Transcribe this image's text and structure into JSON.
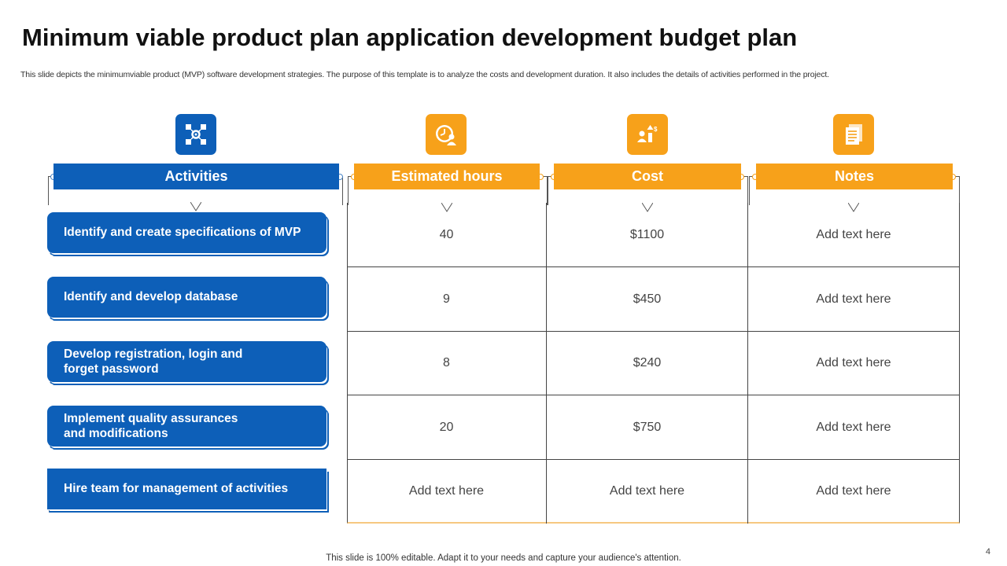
{
  "title": "Minimum viable product plan application development budget plan",
  "subtitle": "This slide depicts the minimumviable product (MVP)   software development strategies. The purpose of this template is to  analyze  the costs and development duration. It also includes the details of activities performed in the project.",
  "columns": [
    {
      "label": "Activities",
      "icon": "network-gear-icon",
      "color": "#0d5fb8"
    },
    {
      "label": "Estimated hours",
      "icon": "clock-person-icon",
      "color": "#f7a11a"
    },
    {
      "label": "Cost",
      "icon": "money-growth-icon",
      "color": "#f7a11a"
    },
    {
      "label": "Notes",
      "icon": "notes-icon",
      "color": "#f7a11a"
    }
  ],
  "rows": [
    {
      "activity": "Identify and create specifications of MVP",
      "hours": "40",
      "cost": "$1100",
      "notes": "Add text here"
    },
    {
      "activity": "Identify and develop database",
      "hours": "9",
      "cost": "$450",
      "notes": "Add text here"
    },
    {
      "activity": "Develop registration, login and\nforget password",
      "hours": "8",
      "cost": "$240",
      "notes": "Add text here"
    },
    {
      "activity": "Implement quality assurances\nand modifications",
      "hours": "20",
      "cost": "$750",
      "notes": "Add text here"
    },
    {
      "activity": "Hire team for management of activities",
      "hours": "Add text here",
      "cost": "Add text here",
      "notes": "Add  text here"
    }
  ],
  "footer": "This slide is 100% editable. Adapt it to your needs and capture your audience's attention.",
  "page_number": "4"
}
